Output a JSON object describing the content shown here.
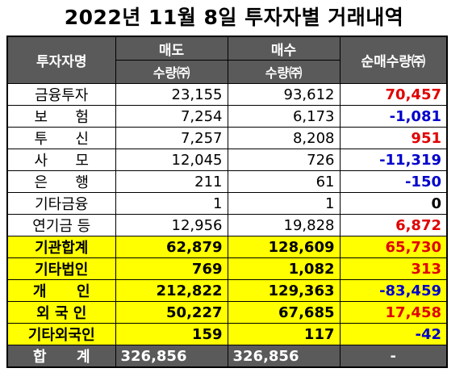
{
  "title": "2022년 11월 8일 투자자별 거래내역",
  "headers": {
    "investor": "투자자명",
    "sell": "매도",
    "buy": "매수",
    "qty_sell": "수량㈜",
    "qty_buy": "수량㈜",
    "net": "순매수량㈜"
  },
  "rows": [
    {
      "name": "금융투자",
      "sell": "23,155",
      "buy": "93,612",
      "net": "70,457",
      "sign": "pos",
      "hl": false
    },
    {
      "name": "보      험",
      "sell": "7,254",
      "buy": "6,173",
      "net": "-1,081",
      "sign": "neg",
      "hl": false
    },
    {
      "name": "투      신",
      "sell": "7,257",
      "buy": "8,208",
      "net": "951",
      "sign": "pos",
      "hl": false
    },
    {
      "name": "사      모",
      "sell": "12,045",
      "buy": "726",
      "net": "-11,319",
      "sign": "neg",
      "hl": false
    },
    {
      "name": "은      행",
      "sell": "211",
      "buy": "61",
      "net": "-150",
      "sign": "neg",
      "hl": false
    },
    {
      "name": "기타금융",
      "sell": "1",
      "buy": "1",
      "net": "0",
      "sign": "zero",
      "hl": false
    },
    {
      "name": "연기금 등",
      "sell": "12,956",
      "buy": "19,828",
      "net": "6,872",
      "sign": "pos",
      "hl": false
    },
    {
      "name": "기관합계",
      "sell": "62,879",
      "buy": "128,609",
      "net": "65,730",
      "sign": "pos",
      "hl": true
    },
    {
      "name": "기타법인",
      "sell": "769",
      "buy": "1,082",
      "net": "313",
      "sign": "pos",
      "hl": true
    },
    {
      "name": "개      인",
      "sell": "212,822",
      "buy": "129,363",
      "net": "-83,459",
      "sign": "neg",
      "hl": true
    },
    {
      "name": "외 국 인",
      "sell": "50,227",
      "buy": "67,685",
      "net": "17,458",
      "sign": "pos",
      "hl": true
    },
    {
      "name": "기타외국인",
      "sell": "159",
      "buy": "117",
      "net": "-42",
      "sign": "neg",
      "hl": true
    }
  ],
  "total": {
    "name": "합      계",
    "sell": "326,856",
    "buy": "326,856",
    "net": "-"
  },
  "colors": {
    "header_bg": "#5a5a5a",
    "highlight": "#ffff00",
    "positive": "#e00000",
    "negative": "#0000cc"
  }
}
